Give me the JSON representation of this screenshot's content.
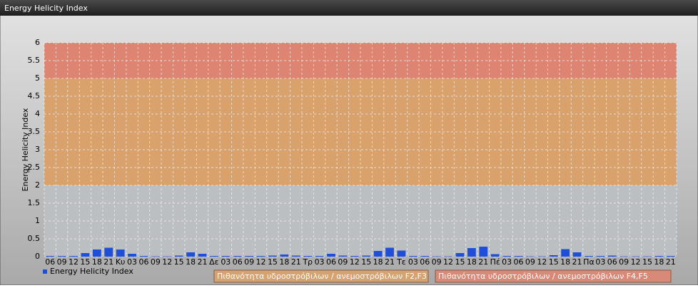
{
  "chart_data": {
    "type": "bar",
    "title": "Energy Helicity Index",
    "y_label": "Energy Helicity Index",
    "categories": [
      "06",
      "09",
      "12",
      "15",
      "18",
      "21",
      "Κυ",
      "03",
      "06",
      "09",
      "12",
      "15",
      "18",
      "21",
      "Δε",
      "03",
      "06",
      "09",
      "12",
      "15",
      "18",
      "21",
      "Τρ",
      "03",
      "06",
      "09",
      "12",
      "15",
      "18",
      "21",
      "Τε",
      "03",
      "06",
      "09",
      "12",
      "15",
      "18",
      "21",
      "Πέ",
      "03",
      "06",
      "09",
      "12",
      "15",
      "18",
      "21",
      "Πα",
      "03",
      "06",
      "09",
      "12",
      "15",
      "18",
      "21"
    ],
    "series": [
      {
        "name": "Energy Helicity Index",
        "color": "#1f4fd8",
        "values": [
          0.02,
          0.02,
          0.02,
          0.1,
          0.2,
          0.25,
          0.2,
          0.08,
          0.02,
          0.01,
          0.01,
          0.03,
          0.12,
          0.08,
          0.02,
          0.02,
          0.02,
          0.02,
          0.02,
          0.03,
          0.06,
          0.03,
          0.02,
          0.02,
          0.08,
          0.03,
          0.02,
          0.03,
          0.16,
          0.25,
          0.17,
          0.02,
          0.02,
          0.01,
          0.01,
          0.1,
          0.24,
          0.28,
          0.07,
          0.02,
          0.02,
          0.01,
          0.01,
          0.04,
          0.21,
          0.12,
          0.02,
          0.02,
          0.03,
          0.01,
          0.01,
          0.01,
          0.02,
          0.02
        ]
      }
    ],
    "bands": [
      {
        "from": 2,
        "to": 5,
        "color": "#d9a16b",
        "name": "Πιθανότητα υδροστρόβιλων / ανεμοστρόβιλων F2,F3"
      },
      {
        "from": 5,
        "to": 6,
        "color": "#dd8572",
        "name": "Πιθανότητα υδροστρόβιλων / ανεμοστρόβιλων F4,F5"
      }
    ],
    "ylim": [
      0,
      6
    ],
    "yticks": [
      0,
      0.5,
      1,
      1.5,
      2,
      2.5,
      3,
      3.5,
      4,
      4.5,
      5,
      5.5,
      6
    ],
    "grid": true
  }
}
